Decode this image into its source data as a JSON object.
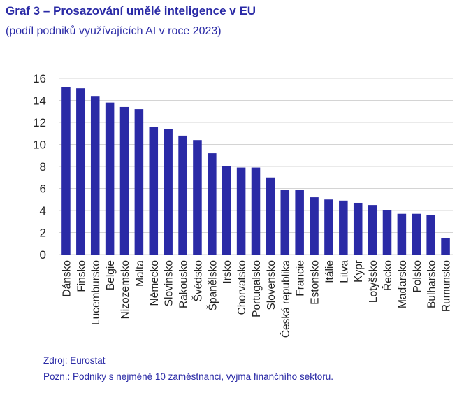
{
  "header": {
    "title": "Graf 3 – Prosazování umělé inteligence v EU",
    "subtitle": "(podíl podniků využívajících AI v roce 2023)"
  },
  "footer": {
    "source": "Zdroj: Eurostat",
    "note": "Pozn.: Podniky s nejméně 10 zaměstnanci, vyjma finančního sektoru."
  },
  "colors": {
    "bar": "#2a2aa6",
    "text": "#2a2aa6",
    "grid": "#d4d4d4",
    "axis_text": "#222222"
  },
  "chart_data": {
    "type": "bar",
    "title": "Graf 3 – Prosazování umělé inteligence v EU",
    "subtitle": "(podíl podniků využívajících AI v roce 2023)",
    "xlabel": "",
    "ylabel": "",
    "ylim": [
      0,
      16
    ],
    "yticks": [
      0,
      2,
      4,
      6,
      8,
      10,
      12,
      14,
      16
    ],
    "grid": true,
    "legend": "none",
    "categories": [
      "Dánsko",
      "Finsko",
      "Lucembursko",
      "Belgie",
      "Nizozemsko",
      "Malta",
      "Německo",
      "Slovinsko",
      "Rakousko",
      "Švédsko",
      "Španělsko",
      "Irsko",
      "Chorvatsko",
      "Portugalsko",
      "Slovensko",
      "Česká republika",
      "Francie",
      "Estonsko",
      "Itálie",
      "Litva",
      "Kypr",
      "Lotyšsko",
      "Řecko",
      "Maďarsko",
      "Polsko",
      "Bulharsko",
      "Rumunsko"
    ],
    "values": [
      15.2,
      15.1,
      14.4,
      13.8,
      13.4,
      13.2,
      11.6,
      11.4,
      10.8,
      10.4,
      9.2,
      8.0,
      7.9,
      7.9,
      7.0,
      5.9,
      5.9,
      5.2,
      5.0,
      4.9,
      4.7,
      4.5,
      4.0,
      3.7,
      3.7,
      3.6,
      1.5
    ]
  }
}
